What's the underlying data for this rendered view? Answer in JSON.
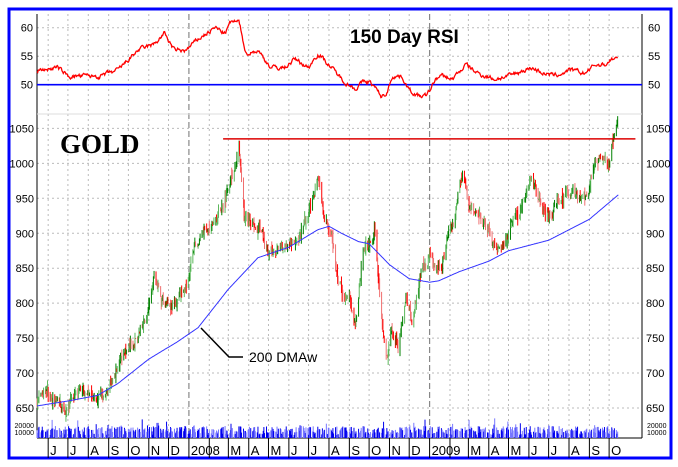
{
  "chart_data": {
    "type": "ohlc-line",
    "title": "GOLD",
    "colors": {
      "frame": "#0000ff",
      "up": "#008000",
      "down": "#ff0000",
      "rsi": "#ff0000",
      "rsi_level": "#0000ff",
      "dma": "#3333ff",
      "resistance": "#dd0000",
      "volume": "#0000ee"
    },
    "x_range": [
      "2007-05-15",
      "2009-11-20"
    ],
    "x_tick_labels": [
      {
        "date": "2007-06-01",
        "label": "J"
      },
      {
        "date": "2007-07-01",
        "label": "J"
      },
      {
        "date": "2007-08-01",
        "label": "A"
      },
      {
        "date": "2007-09-01",
        "label": "S"
      },
      {
        "date": "2007-10-01",
        "label": "O"
      },
      {
        "date": "2007-11-01",
        "label": "N"
      },
      {
        "date": "2007-12-01",
        "label": "D"
      },
      {
        "date": "2008-01-01",
        "label": "2008"
      },
      {
        "date": "2008-02-01",
        "label": ""
      },
      {
        "date": "2008-03-01",
        "label": "M"
      },
      {
        "date": "2008-04-01",
        "label": "A"
      },
      {
        "date": "2008-05-01",
        "label": "M"
      },
      {
        "date": "2008-06-01",
        "label": "J"
      },
      {
        "date": "2008-07-01",
        "label": "J"
      },
      {
        "date": "2008-08-01",
        "label": "A"
      },
      {
        "date": "2008-09-01",
        "label": "S"
      },
      {
        "date": "2008-10-01",
        "label": "O"
      },
      {
        "date": "2008-11-01",
        "label": "N"
      },
      {
        "date": "2008-12-01",
        "label": "D"
      },
      {
        "date": "2009-01-01",
        "label": "2009"
      },
      {
        "date": "2009-02-01",
        "label": ""
      },
      {
        "date": "2009-03-01",
        "label": "M"
      },
      {
        "date": "2009-04-01",
        "label": "A"
      },
      {
        "date": "2009-05-01",
        "label": "M"
      },
      {
        "date": "2009-06-01",
        "label": "J"
      },
      {
        "date": "2009-07-01",
        "label": "J"
      },
      {
        "date": "2009-08-01",
        "label": "A"
      },
      {
        "date": "2009-09-01",
        "label": "S"
      },
      {
        "date": "2009-10-01",
        "label": "O"
      }
    ],
    "year_dividers": [
      "2008-01-01",
      "2009-01-01"
    ],
    "grid": true,
    "rsi_panel": {
      "title": "150 Day RSI",
      "ylim": [
        42.5,
        62.5
      ],
      "ticks": [
        "60",
        "55",
        "50"
      ],
      "level": 50,
      "series": [
        [
          "2007-05-15",
          52.5
        ],
        [
          "2007-06-15",
          53
        ],
        [
          "2007-07-01",
          51.5
        ],
        [
          "2007-08-01",
          51.5
        ],
        [
          "2007-08-20",
          51.5
        ],
        [
          "2007-09-15",
          52.5
        ],
        [
          "2007-10-15",
          56
        ],
        [
          "2007-11-08",
          57
        ],
        [
          "2007-11-25",
          59
        ],
        [
          "2007-12-10",
          56
        ],
        [
          "2007-12-28",
          56
        ],
        [
          "2008-01-15",
          58
        ],
        [
          "2008-02-10",
          60
        ],
        [
          "2008-02-25",
          59
        ],
        [
          "2008-03-05",
          61
        ],
        [
          "2008-03-17",
          61
        ],
        [
          "2008-03-28",
          55.5
        ],
        [
          "2008-04-15",
          56
        ],
        [
          "2008-05-05",
          53
        ],
        [
          "2008-05-25",
          53
        ],
        [
          "2008-06-10",
          54.5
        ],
        [
          "2008-07-01",
          53
        ],
        [
          "2008-07-15",
          55.5
        ],
        [
          "2008-08-01",
          53.5
        ],
        [
          "2008-08-20",
          51
        ],
        [
          "2008-09-10",
          49.3
        ],
        [
          "2008-09-22",
          50.5
        ],
        [
          "2008-10-01",
          50.5
        ],
        [
          "2008-10-10",
          49.5
        ],
        [
          "2008-10-20",
          47.8
        ],
        [
          "2008-10-28",
          48.5
        ],
        [
          "2008-11-05",
          51.5
        ],
        [
          "2008-11-20",
          51.5
        ],
        [
          "2008-12-01",
          49
        ],
        [
          "2008-12-15",
          48
        ],
        [
          "2008-12-28",
          48
        ],
        [
          "2009-01-10",
          51
        ],
        [
          "2009-01-20",
          51.5
        ],
        [
          "2009-02-05",
          51
        ],
        [
          "2009-02-25",
          53.5
        ],
        [
          "2009-03-15",
          52
        ],
        [
          "2009-04-10",
          51
        ],
        [
          "2009-05-01",
          51.5
        ],
        [
          "2009-06-05",
          53
        ],
        [
          "2009-06-25",
          52
        ],
        [
          "2009-07-10",
          51.5
        ],
        [
          "2009-08-01",
          52.5
        ],
        [
          "2009-08-25",
          52
        ],
        [
          "2009-09-10",
          53.5
        ],
        [
          "2009-09-25",
          53.5
        ],
        [
          "2009-10-05",
          54.5
        ],
        [
          "2009-10-14",
          54.5
        ]
      ]
    },
    "price_panel": {
      "ylim": [
        640,
        1080
      ],
      "ticks": [
        "1050",
        "1000",
        "950",
        "900",
        "850",
        "800",
        "750",
        "700",
        "650"
      ],
      "close": [
        [
          "2007-05-15",
          660
        ],
        [
          "2007-06-01",
          665
        ],
        [
          "2007-06-15",
          655
        ],
        [
          "2007-07-01",
          650
        ],
        [
          "2007-07-15",
          675
        ],
        [
          "2007-08-01",
          665
        ],
        [
          "2007-08-15",
          660
        ],
        [
          "2007-09-01",
          675
        ],
        [
          "2007-09-15",
          715
        ],
        [
          "2007-10-01",
          740
        ],
        [
          "2007-10-15",
          755
        ],
        [
          "2007-11-01",
          790
        ],
        [
          "2007-11-08",
          835
        ],
        [
          "2007-11-20",
          800
        ],
        [
          "2007-12-01",
          795
        ],
        [
          "2007-12-15",
          805
        ],
        [
          "2007-12-28",
          830
        ],
        [
          "2008-01-10",
          880
        ],
        [
          "2008-01-25",
          910
        ],
        [
          "2008-02-10",
          910
        ],
        [
          "2008-02-25",
          950
        ],
        [
          "2008-03-10",
          985
        ],
        [
          "2008-03-17",
          1020
        ],
        [
          "2008-03-25",
          930
        ],
        [
          "2008-04-05",
          915
        ],
        [
          "2008-04-20",
          900
        ],
        [
          "2008-05-01",
          870
        ],
        [
          "2008-05-15",
          880
        ],
        [
          "2008-06-01",
          880
        ],
        [
          "2008-06-15",
          890
        ],
        [
          "2008-07-01",
          930
        ],
        [
          "2008-07-15",
          975
        ],
        [
          "2008-07-25",
          930
        ],
        [
          "2008-08-05",
          900
        ],
        [
          "2008-08-15",
          820
        ],
        [
          "2008-09-01",
          810
        ],
        [
          "2008-09-10",
          760
        ],
        [
          "2008-09-22",
          880
        ],
        [
          "2008-10-01",
          880
        ],
        [
          "2008-10-10",
          900
        ],
        [
          "2008-10-20",
          780
        ],
        [
          "2008-10-28",
          730
        ],
        [
          "2008-11-05",
          760
        ],
        [
          "2008-11-15",
          740
        ],
        [
          "2008-11-25",
          810
        ],
        [
          "2008-12-05",
          770
        ],
        [
          "2008-12-20",
          850
        ],
        [
          "2009-01-01",
          870
        ],
        [
          "2009-01-10",
          850
        ],
        [
          "2009-01-20",
          860
        ],
        [
          "2009-02-05",
          910
        ],
        [
          "2009-02-20",
          990
        ],
        [
          "2009-03-01",
          940
        ],
        [
          "2009-03-15",
          930
        ],
        [
          "2009-03-25",
          920
        ],
        [
          "2009-04-10",
          880
        ],
        [
          "2009-04-25",
          890
        ],
        [
          "2009-05-10",
          920
        ],
        [
          "2009-05-25",
          950
        ],
        [
          "2009-06-05",
          975
        ],
        [
          "2009-06-20",
          935
        ],
        [
          "2009-07-05",
          930
        ],
        [
          "2009-07-20",
          950
        ],
        [
          "2009-08-05",
          960
        ],
        [
          "2009-08-20",
          945
        ],
        [
          "2009-09-01",
          960
        ],
        [
          "2009-09-10",
          1000
        ],
        [
          "2009-09-20",
          1010
        ],
        [
          "2009-10-01",
          1000
        ],
        [
          "2009-10-08",
          1045
        ],
        [
          "2009-10-14",
          1060
        ]
      ],
      "dma_label": "200 DMAw",
      "dma": [
        [
          "2007-05-15",
          653
        ],
        [
          "2007-07-01",
          660
        ],
        [
          "2007-08-15",
          668
        ],
        [
          "2007-09-15",
          685
        ],
        [
          "2007-11-01",
          720
        ],
        [
          "2007-12-15",
          745
        ],
        [
          "2008-01-15",
          765
        ],
        [
          "2008-03-01",
          820
        ],
        [
          "2008-04-15",
          865
        ],
        [
          "2008-06-01",
          880
        ],
        [
          "2008-07-15",
          905
        ],
        [
          "2008-08-01",
          910
        ],
        [
          "2008-08-20",
          900
        ],
        [
          "2008-09-15",
          888
        ],
        [
          "2008-10-01",
          885
        ],
        [
          "2008-11-01",
          855
        ],
        [
          "2008-12-01",
          835
        ],
        [
          "2009-01-01",
          830
        ],
        [
          "2009-01-15",
          832
        ],
        [
          "2009-02-15",
          845
        ],
        [
          "2009-04-01",
          860
        ],
        [
          "2009-05-01",
          875
        ],
        [
          "2009-07-01",
          890
        ],
        [
          "2009-08-01",
          905
        ],
        [
          "2009-09-01",
          920
        ],
        [
          "2009-10-15",
          955
        ]
      ],
      "resistance": {
        "value": 1035,
        "from": "2008-02-22",
        "to": "2009-11-10"
      }
    },
    "volume_panel": {
      "ticks": [
        "20000",
        "10000"
      ]
    }
  }
}
